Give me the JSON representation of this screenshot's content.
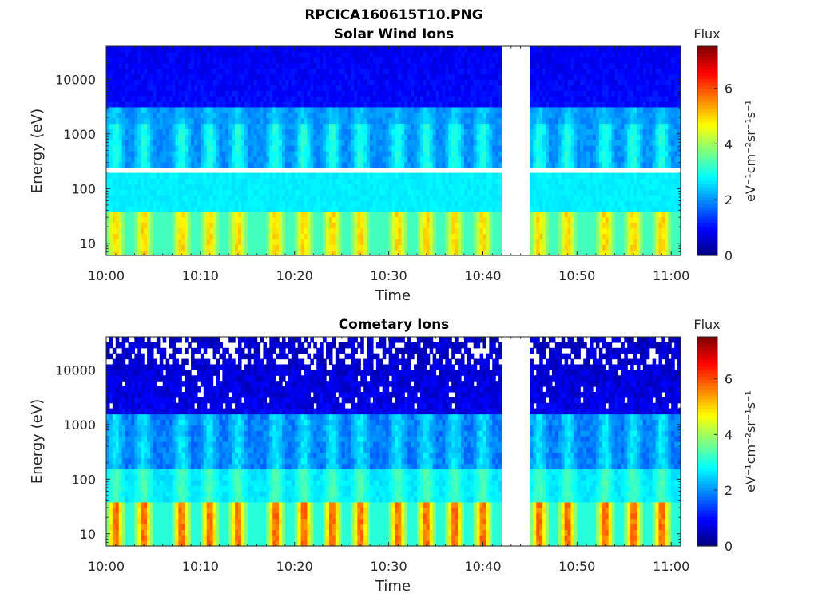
{
  "figure": {
    "file_title": "RPCICA160615T10.PNG"
  },
  "chart_data": [
    {
      "type": "heatmap",
      "title": "Solar Wind Ions",
      "xlabel": "Time",
      "ylabel": "Energy (eV)",
      "x_ticks": [
        "10:00",
        "10:10",
        "10:20",
        "10:30",
        "10:40",
        "10:50",
        "11:00"
      ],
      "x_range": [
        "10:00",
        "11:01"
      ],
      "y_ticks": [
        "10",
        "100",
        "1000",
        "10000"
      ],
      "y_scale": "log",
      "y_range": [
        6,
        40000
      ],
      "data_gap": [
        "10:42",
        "10:45"
      ],
      "removed_energy_bin_eV": 200,
      "burst_times": [
        "10:01",
        "10:04",
        "10:08",
        "10:11",
        "10:14",
        "10:18",
        "10:21",
        "10:24",
        "10:27",
        "10:31",
        "10:34",
        "10:37",
        "10:40",
        "10:46",
        "10:49",
        "10:53",
        "10:56",
        "10:59"
      ],
      "low_energy_flux_peak": 5.5,
      "colorbar": {
        "title": "Flux",
        "label": "eV⁻¹cm⁻²sr⁻¹s⁻¹",
        "ticks": [
          "0",
          "2",
          "4",
          "6"
        ],
        "range": [
          0,
          7.5
        ]
      }
    },
    {
      "type": "heatmap",
      "title": "Cometary Ions",
      "xlabel": "Time",
      "ylabel": "Energy (eV)",
      "x_ticks": [
        "10:00",
        "10:10",
        "10:20",
        "10:30",
        "10:40",
        "10:50",
        "11:00"
      ],
      "x_range": [
        "10:00",
        "11:01"
      ],
      "y_ticks": [
        "10",
        "100",
        "1000",
        "10000"
      ],
      "y_scale": "log",
      "y_range": [
        6,
        40000
      ],
      "data_gap": [
        "10:42",
        "10:45"
      ],
      "burst_times": [
        "10:01",
        "10:04",
        "10:08",
        "10:11",
        "10:14",
        "10:18",
        "10:21",
        "10:24",
        "10:27",
        "10:31",
        "10:34",
        "10:37",
        "10:40",
        "10:46",
        "10:49",
        "10:53",
        "10:56",
        "10:59"
      ],
      "low_energy_flux_peak": 6.5,
      "colorbar": {
        "title": "Flux",
        "label": "eV⁻¹cm⁻²sr⁻¹s⁻¹",
        "ticks": [
          "0",
          "2",
          "4",
          "6"
        ],
        "range": [
          0,
          7.5
        ]
      }
    }
  ]
}
